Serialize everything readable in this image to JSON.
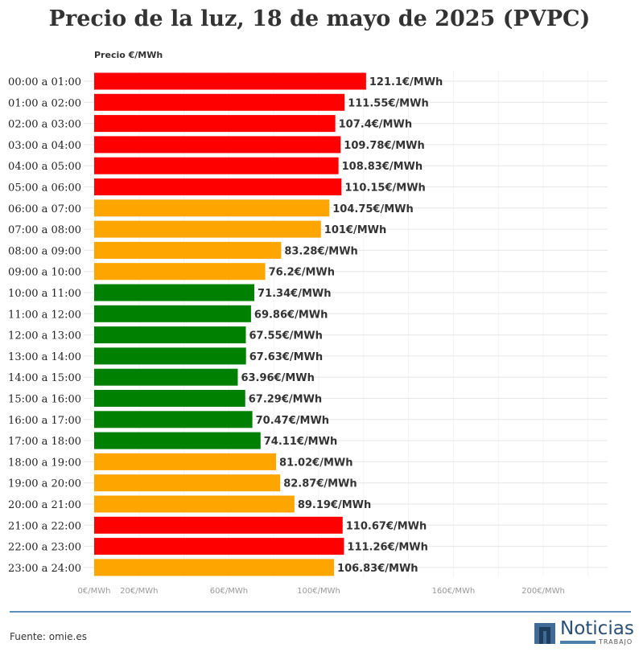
{
  "chart_data": {
    "type": "bar",
    "orientation": "horizontal",
    "title": "Precio de la luz, 18 de mayo de 2025 (PVPC)",
    "ylabel": "Precio €/MWh",
    "categories": [
      "00:00 a 01:00",
      "01:00 a 02:00",
      "02:00 a 03:00",
      "03:00 a 04:00",
      "04:00 a 05:00",
      "05:00 a 06:00",
      "06:00 a 07:00",
      "07:00 a 08:00",
      "08:00 a 09:00",
      "09:00 a 10:00",
      "10:00 a 11:00",
      "11:00 a 12:00",
      "12:00 a 13:00",
      "13:00 a 14:00",
      "14:00 a 15:00",
      "15:00 a 16:00",
      "16:00 a 17:00",
      "17:00 a 18:00",
      "18:00 a 19:00",
      "19:00 a 20:00",
      "20:00 a 21:00",
      "21:00 a 22:00",
      "22:00 a 23:00",
      "23:00 a 24:00"
    ],
    "values": [
      121.1,
      111.55,
      107.4,
      109.78,
      108.83,
      110.15,
      104.75,
      101,
      83.28,
      76.2,
      71.34,
      69.86,
      67.55,
      67.63,
      63.96,
      67.29,
      70.47,
      74.11,
      81.02,
      82.87,
      89.19,
      110.67,
      111.26,
      106.83
    ],
    "levels": [
      "high",
      "high",
      "high",
      "high",
      "high",
      "high",
      "mid",
      "mid",
      "mid",
      "mid",
      "low",
      "low",
      "low",
      "low",
      "low",
      "low",
      "low",
      "low",
      "mid",
      "mid",
      "mid",
      "high",
      "high",
      "mid"
    ],
    "level_colors": {
      "high": "#ff0000",
      "mid": "#ffa500",
      "low": "#008000"
    },
    "value_suffix": "€/MWh",
    "xticks": [
      0,
      20,
      60,
      100,
      160,
      200
    ],
    "xtick_labels": [
      "0€/MWh",
      "20€/MWh",
      "60€/MWh",
      "100€/MWh",
      "160€/MWh",
      "200€/MWh"
    ],
    "xlim": [
      0,
      226
    ],
    "grid": true
  },
  "footer": {
    "source": "Fuente: omie.es",
    "logo_word": "Noticias",
    "logo_sub": "TRABAJO"
  }
}
